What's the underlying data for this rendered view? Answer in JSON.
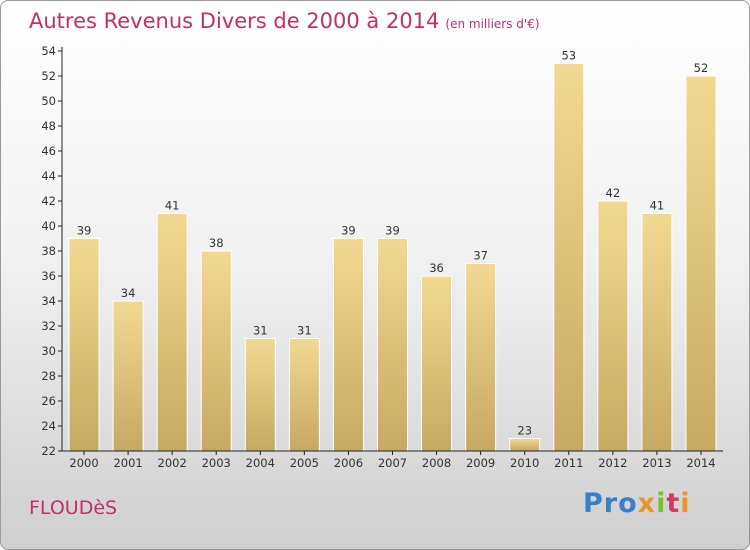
{
  "title": "Autres Revenus Divers de 2000 à 2014",
  "title_unit": "(en milliers d'€)",
  "place_name": "FLOUDèS",
  "logo": {
    "part1": "Pro",
    "part2": "x",
    "part3": "i",
    "part4": "t",
    "part5": "i"
  },
  "colors": {
    "title": "#c0306a",
    "bar_light": "#f2d991",
    "bar_dark": "#c6a962",
    "axis": "#222222"
  },
  "chart_data": {
    "type": "bar",
    "categories": [
      "2000",
      "2001",
      "2002",
      "2003",
      "2004",
      "2005",
      "2006",
      "2007",
      "2008",
      "2009",
      "2010",
      "2011",
      "2012",
      "2013",
      "2014"
    ],
    "values": [
      39,
      34,
      41,
      38,
      31,
      31,
      39,
      39,
      36,
      37,
      23,
      53,
      42,
      41,
      52
    ],
    "ylim": [
      22,
      54
    ],
    "yticks": [
      22,
      24,
      26,
      28,
      30,
      32,
      34,
      36,
      38,
      40,
      42,
      44,
      46,
      48,
      50,
      52,
      54
    ],
    "grid": false,
    "data_labels": true
  }
}
